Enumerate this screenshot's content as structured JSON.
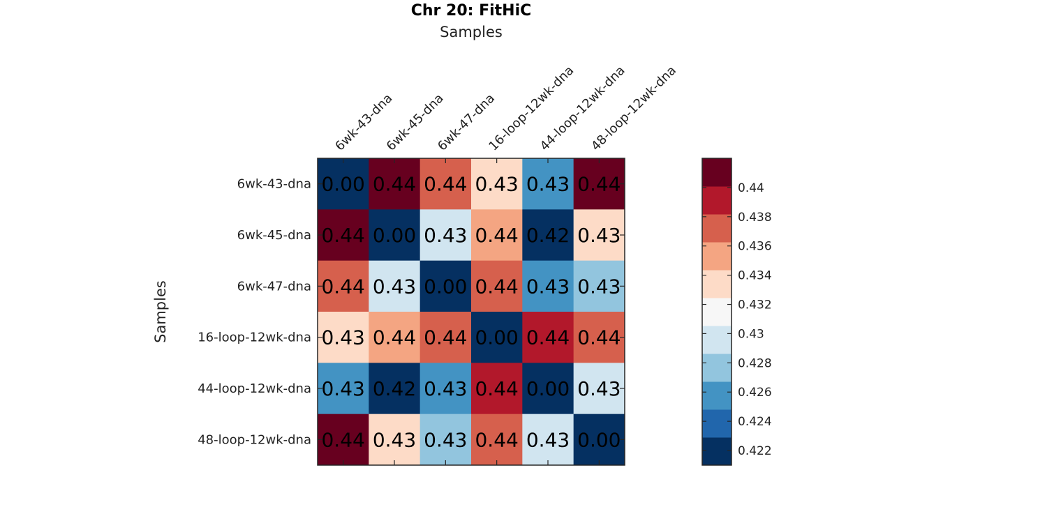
{
  "chart_data": {
    "type": "heatmap",
    "title": "Chr 20: FitHiC",
    "xlabel": "Samples",
    "ylabel": "Samples",
    "x_categories": [
      "6wk-43-dna",
      "6wk-45-dna",
      "6wk-47-dna",
      "16-loop-12wk-dna",
      "44-loop-12wk-dna",
      "48-loop-12wk-dna"
    ],
    "y_categories": [
      "6wk-43-dna",
      "6wk-45-dna",
      "6wk-47-dna",
      "16-loop-12wk-dna",
      "44-loop-12wk-dna",
      "48-loop-12wk-dna"
    ],
    "values": [
      [
        0.0,
        0.441,
        0.437,
        0.434,
        0.426,
        0.441
      ],
      [
        0.441,
        0.0,
        0.43,
        0.435,
        0.422,
        0.434
      ],
      [
        0.437,
        0.43,
        0.0,
        0.437,
        0.426,
        0.428
      ],
      [
        0.434,
        0.435,
        0.437,
        0.0,
        0.439,
        0.437
      ],
      [
        0.426,
        0.422,
        0.426,
        0.439,
        0.0,
        0.43
      ],
      [
        0.441,
        0.434,
        0.428,
        0.437,
        0.43,
        0.0
      ]
    ],
    "cell_labels": [
      [
        "0.00",
        "0.44",
        "0.44",
        "0.43",
        "0.43",
        "0.44"
      ],
      [
        "0.44",
        "0.00",
        "0.43",
        "0.44",
        "0.42",
        "0.43"
      ],
      [
        "0.44",
        "0.43",
        "0.00",
        "0.44",
        "0.43",
        "0.43"
      ],
      [
        "0.43",
        "0.44",
        "0.44",
        "0.00",
        "0.44",
        "0.44"
      ],
      [
        "0.43",
        "0.42",
        "0.43",
        "0.44",
        "0.00",
        "0.43"
      ],
      [
        "0.44",
        "0.43",
        "0.43",
        "0.44",
        "0.43",
        "0.00"
      ]
    ],
    "colorbar": {
      "range": [
        0.421,
        0.442
      ],
      "ticks": [
        0.422,
        0.424,
        0.426,
        0.428,
        0.43,
        0.432,
        0.434,
        0.436,
        0.438,
        0.44
      ],
      "tick_labels": [
        "0.422",
        "0.424",
        "0.426",
        "0.428",
        "0.43",
        "0.432",
        "0.434",
        "0.436",
        "0.438",
        "0.44"
      ],
      "colors": [
        "#053061",
        "#2166ac",
        "#4393c3",
        "#92c5de",
        "#d1e5f0",
        "#f7f7f7",
        "#fddbc7",
        "#f4a582",
        "#d6604d",
        "#b2182b",
        "#67001f"
      ],
      "placement": "right"
    },
    "x_axis_position": "top"
  }
}
